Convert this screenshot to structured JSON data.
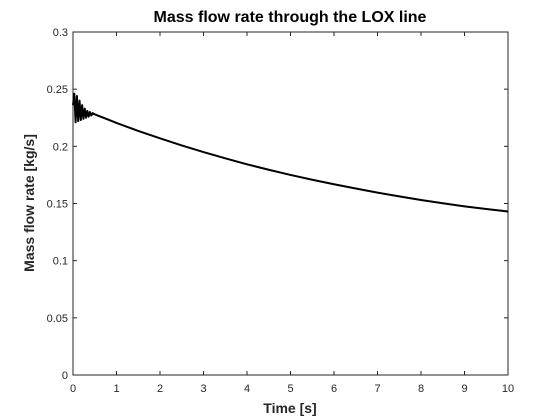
{
  "chart_data": {
    "type": "line",
    "title": "Mass flow rate through the LOX line",
    "xlabel": "Time [s]",
    "ylabel": "Mass flow rate [kg/s]",
    "xlim": [
      0,
      10
    ],
    "ylim": [
      0,
      0.3
    ],
    "x_ticks": [
      "0",
      "1",
      "2",
      "3",
      "4",
      "5",
      "6",
      "7",
      "8",
      "9",
      "10"
    ],
    "y_ticks": [
      "0",
      "0.05",
      "0.1",
      "0.15",
      "0.2",
      "0.25",
      "0.3"
    ],
    "grid": false,
    "legend": "none",
    "series": [
      {
        "color": "#000000",
        "x": [
          0,
          0.03,
          0.06,
          0.09,
          0.12,
          0.15,
          0.18,
          0.21,
          0.24,
          0.27,
          0.3,
          0.33,
          0.36,
          0.39,
          0.42,
          0.45,
          0.5,
          0.6,
          0.8,
          1,
          1.5,
          2,
          2.5,
          3,
          3.5,
          4,
          4.5,
          5,
          5.5,
          6,
          6.5,
          7,
          7.5,
          8,
          8.5,
          9,
          9.5,
          10
        ],
        "y": [
          0.236,
          0.246,
          0.221,
          0.244,
          0.222,
          0.24,
          0.223,
          0.236,
          0.224,
          0.233,
          0.225,
          0.231,
          0.226,
          0.23,
          0.227,
          0.229,
          0.228,
          0.2265,
          0.2235,
          0.2205,
          0.2135,
          0.207,
          0.2008,
          0.195,
          0.1895,
          0.1843,
          0.1795,
          0.175,
          0.1708,
          0.1668,
          0.1631,
          0.1595,
          0.1562,
          0.1531,
          0.1502,
          0.1475,
          0.1452,
          0.143
        ]
      }
    ]
  }
}
